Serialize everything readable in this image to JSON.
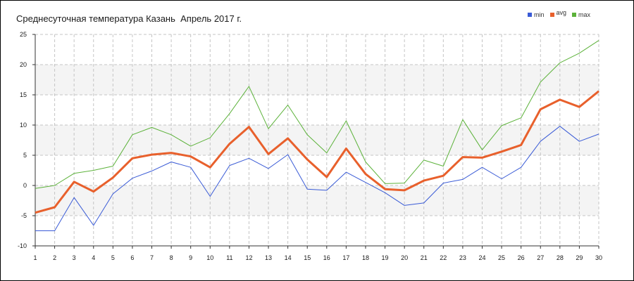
{
  "title": "Среднесуточная температура Казань  Апрель 2017 г.",
  "chart_data": {
    "type": "line",
    "title": "Среднесуточная температура Казань  Апрель 2017 г.",
    "xlabel": "",
    "ylabel": "",
    "x": [
      1,
      2,
      3,
      4,
      5,
      6,
      7,
      8,
      9,
      10,
      11,
      12,
      13,
      14,
      15,
      16,
      17,
      18,
      19,
      20,
      21,
      22,
      23,
      24,
      25,
      26,
      27,
      28,
      29,
      30
    ],
    "xlim": [
      1,
      30
    ],
    "ylim": [
      -10,
      25
    ],
    "yticks": [
      -10,
      -5,
      0,
      5,
      10,
      15,
      20,
      25
    ],
    "grid": true,
    "legend_position": "top-right",
    "series": [
      {
        "name": "min",
        "color": "#3a5bd6",
        "values": [
          -7.5,
          -7.5,
          -2.0,
          -6.6,
          -1.4,
          1.2,
          2.4,
          3.9,
          3.0,
          -1.8,
          3.3,
          4.5,
          2.8,
          5.1,
          -0.6,
          -0.8,
          2.2,
          0.5,
          -1.2,
          -3.3,
          -2.9,
          0.4,
          1.0,
          3.0,
          1.1,
          3.0,
          7.3,
          9.8,
          7.3,
          8.5
        ]
      },
      {
        "name": "avg",
        "color": "#e8602c",
        "values": [
          -4.5,
          -3.6,
          0.6,
          -1.0,
          1.3,
          4.5,
          5.1,
          5.4,
          4.8,
          3.0,
          6.9,
          9.7,
          5.2,
          7.8,
          4.3,
          1.4,
          6.1,
          1.9,
          -0.6,
          -0.8,
          0.8,
          1.6,
          4.7,
          4.6,
          5.6,
          6.7,
          12.6,
          14.2,
          13.0,
          15.6
        ]
      },
      {
        "name": "max",
        "color": "#5cb23a",
        "values": [
          -0.5,
          0.0,
          2.0,
          2.5,
          3.2,
          8.4,
          9.6,
          8.4,
          6.5,
          7.9,
          11.9,
          16.4,
          9.4,
          13.3,
          8.4,
          5.4,
          10.7,
          3.9,
          0.3,
          0.4,
          4.2,
          3.2,
          10.9,
          5.9,
          9.9,
          11.2,
          17.1,
          20.3,
          21.9,
          24.0
        ]
      }
    ]
  }
}
